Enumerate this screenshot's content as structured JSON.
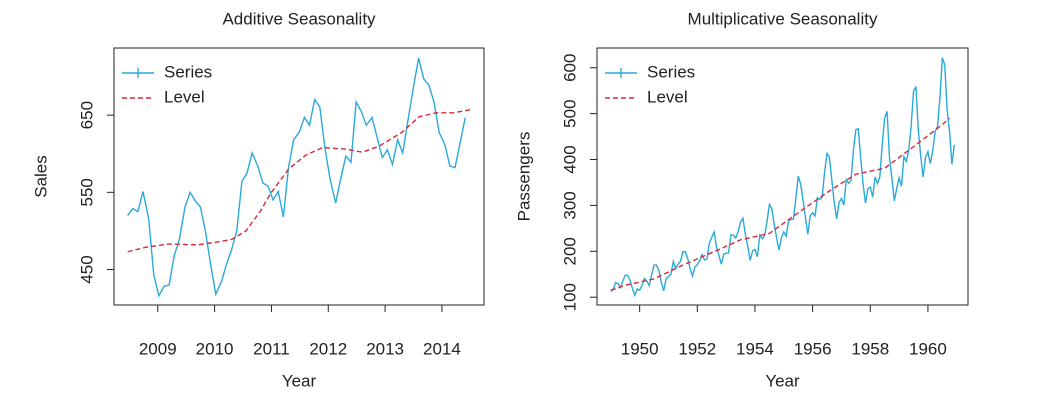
{
  "chart_data": [
    {
      "type": "line",
      "title": "Additive Seasonality",
      "xlabel": "Year",
      "ylabel": "Sales",
      "xlim": [
        2008.23,
        2014.74
      ],
      "xticks": [
        2009,
        2010,
        2011,
        2012,
        2013,
        2014
      ],
      "ylim": [
        404,
        737
      ],
      "yticks": [
        450,
        550,
        650
      ],
      "legend": "topleft",
      "series": [
        {
          "name": "Series",
          "color": "#2aaad8",
          "dash": false,
          "x": [
            2008.47,
            2008.56,
            2008.65,
            2008.74,
            2008.84,
            2008.93,
            2009.02,
            2009.11,
            2009.2,
            2009.29,
            2009.38,
            2009.48,
            2009.57,
            2009.66,
            2009.75,
            2009.84,
            2009.93,
            2010.02,
            2010.12,
            2010.21,
            2010.3,
            2010.39,
            2010.48,
            2010.57,
            2010.66,
            2010.76,
            2010.85,
            2010.94,
            2011.03,
            2011.12,
            2011.21,
            2011.3,
            2011.39,
            2011.49,
            2011.58,
            2011.67,
            2011.76,
            2011.85,
            2011.94,
            2012.03,
            2012.13,
            2012.22,
            2012.31,
            2012.4,
            2012.49,
            2012.58,
            2012.67,
            2012.77,
            2012.86,
            2012.95,
            2013.04,
            2013.13,
            2013.22,
            2013.31,
            2013.41,
            2013.5,
            2013.59,
            2013.68,
            2013.77,
            2013.86,
            2013.95,
            2014.05,
            2014.14,
            2014.23,
            2014.32,
            2014.41
          ],
          "values": [
            520,
            529,
            525,
            551,
            516,
            443,
            416,
            428,
            430,
            468,
            489,
            531,
            550,
            539,
            531,
            499,
            457,
            418,
            434,
            457,
            476,
            500,
            564,
            575,
            601,
            584,
            562,
            558,
            540,
            551,
            518,
            582,
            618,
            628,
            647,
            637,
            670,
            661,
            608,
            568,
            536,
            568,
            597,
            589,
            667,
            655,
            637,
            647,
            621,
            595,
            605,
            586,
            618,
            601,
            647,
            687,
            724,
            697,
            689,
            667,
            628,
            612,
            584,
            582,
            614,
            647
          ]
        },
        {
          "name": "Level",
          "color": "#d8283a",
          "dash": true,
          "x": [
            2008.47,
            2008.8,
            2009.2,
            2009.7,
            2010.0,
            2010.3,
            2010.55,
            2010.8,
            2011.0,
            2011.3,
            2011.6,
            2011.9,
            2012.3,
            2012.6,
            2012.9,
            2013.3,
            2013.6,
            2013.9,
            2014.2,
            2014.5
          ],
          "values": [
            473,
            479,
            483,
            482,
            485,
            489,
            500,
            525,
            550,
            580,
            598,
            608,
            606,
            602,
            610,
            628,
            648,
            653,
            653,
            657
          ]
        }
      ]
    },
    {
      "type": "line",
      "title": "Multiplicative Seasonality",
      "xlabel": "Year",
      "ylabel": "Passengers",
      "xlim": [
        1948.52,
        1961.39
      ],
      "xticks": [
        1950,
        1952,
        1954,
        1956,
        1958,
        1960
      ],
      "ylim": [
        83,
        643
      ],
      "yticks": [
        100,
        200,
        300,
        400,
        500,
        600
      ],
      "legend": "topleft",
      "series": [
        {
          "name": "Series",
          "color": "#2aaad8",
          "dash": false,
          "x": [
            1949,
            1949.083,
            1949.167,
            1949.25,
            1949.333,
            1949.417,
            1949.5,
            1949.583,
            1949.667,
            1949.75,
            1949.833,
            1949.917,
            1950,
            1950.083,
            1950.167,
            1950.25,
            1950.333,
            1950.417,
            1950.5,
            1950.583,
            1950.667,
            1950.75,
            1950.833,
            1950.917,
            1951,
            1951.083,
            1951.167,
            1951.25,
            1951.333,
            1951.417,
            1951.5,
            1951.583,
            1951.667,
            1951.75,
            1951.833,
            1951.917,
            1952,
            1952.083,
            1952.167,
            1952.25,
            1952.333,
            1952.417,
            1952.5,
            1952.583,
            1952.667,
            1952.75,
            1952.833,
            1952.917,
            1953,
            1953.083,
            1953.167,
            1953.25,
            1953.333,
            1953.417,
            1953.5,
            1953.583,
            1953.667,
            1953.75,
            1953.833,
            1953.917,
            1954,
            1954.083,
            1954.167,
            1954.25,
            1954.333,
            1954.417,
            1954.5,
            1954.583,
            1954.667,
            1954.75,
            1954.833,
            1954.917,
            1955,
            1955.083,
            1955.167,
            1955.25,
            1955.333,
            1955.417,
            1955.5,
            1955.583,
            1955.667,
            1955.75,
            1955.833,
            1955.917,
            1956,
            1956.083,
            1956.167,
            1956.25,
            1956.333,
            1956.417,
            1956.5,
            1956.583,
            1956.667,
            1956.75,
            1956.833,
            1956.917,
            1957,
            1957.083,
            1957.167,
            1957.25,
            1957.333,
            1957.417,
            1957.5,
            1957.583,
            1957.667,
            1957.75,
            1957.833,
            1957.917,
            1958,
            1958.083,
            1958.167,
            1958.25,
            1958.333,
            1958.417,
            1958.5,
            1958.583,
            1958.667,
            1958.75,
            1958.833,
            1958.917,
            1959,
            1959.083,
            1959.167,
            1959.25,
            1959.333,
            1959.417,
            1959.5,
            1959.583,
            1959.667,
            1959.75,
            1959.833,
            1959.917,
            1960,
            1960.083,
            1960.167,
            1960.25,
            1960.333,
            1960.417,
            1960.5,
            1960.583,
            1960.667,
            1960.75,
            1960.833,
            1960.917
          ],
          "values": [
            112,
            118,
            132,
            129,
            121,
            135,
            148,
            148,
            136,
            119,
            104,
            118,
            115,
            126,
            141,
            135,
            125,
            149,
            170,
            170,
            158,
            133,
            114,
            140,
            145,
            150,
            178,
            163,
            172,
            178,
            199,
            199,
            184,
            162,
            146,
            166,
            171,
            180,
            193,
            181,
            183,
            218,
            230,
            242,
            209,
            191,
            172,
            194,
            196,
            196,
            236,
            235,
            229,
            243,
            264,
            272,
            237,
            211,
            180,
            201,
            204,
            188,
            235,
            227,
            234,
            264,
            302,
            293,
            259,
            229,
            203,
            229,
            242,
            233,
            267,
            269,
            270,
            315,
            364,
            347,
            312,
            274,
            237,
            278,
            284,
            277,
            317,
            313,
            318,
            374,
            413,
            405,
            355,
            306,
            271,
            306,
            315,
            301,
            356,
            348,
            355,
            422,
            465,
            467,
            404,
            347,
            305,
            336,
            340,
            318,
            362,
            348,
            363,
            435,
            491,
            505,
            404,
            359,
            310,
            337,
            360,
            342,
            406,
            396,
            420,
            472,
            548,
            559,
            463,
            407,
            362,
            405,
            417,
            391,
            419,
            461,
            472,
            535,
            622,
            606,
            508,
            461,
            390,
            432
          ]
        },
        {
          "name": "Level",
          "color": "#d8283a",
          "dash": true,
          "x": [
            1949.0,
            1949.5,
            1950.5,
            1951.5,
            1952.5,
            1953.5,
            1954.5,
            1955.5,
            1956.5,
            1957.5,
            1958.5,
            1959.5,
            1960.5,
            1960.75
          ],
          "values": [
            115,
            126,
            140,
            170,
            197,
            225,
            239,
            284,
            328,
            368,
            381,
            428,
            476,
            490
          ]
        }
      ]
    }
  ]
}
